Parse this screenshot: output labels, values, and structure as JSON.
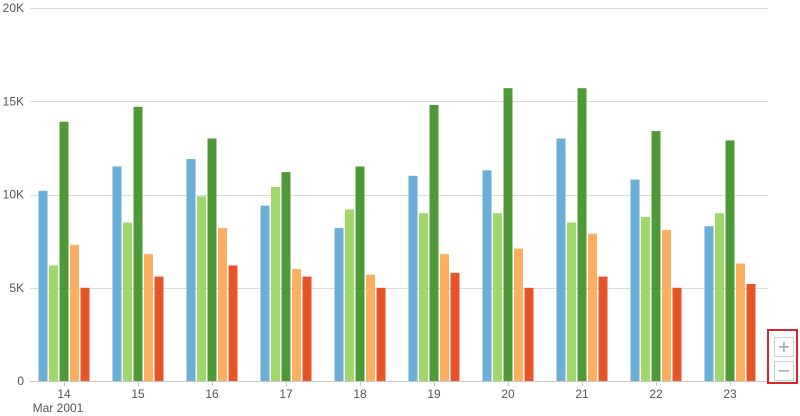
{
  "chart_data": {
    "type": "bar",
    "title": "",
    "xlabel": "",
    "ylabel": "",
    "categories": [
      "14",
      "15",
      "16",
      "17",
      "18",
      "19",
      "20",
      "21",
      "22",
      "23"
    ],
    "x_sublabel": "Mar 2001",
    "ylim": [
      0,
      20000
    ],
    "y_ticks": [
      {
        "value": 0,
        "label": "0"
      },
      {
        "value": 5000,
        "label": "5K"
      },
      {
        "value": 10000,
        "label": "10K"
      },
      {
        "value": 15000,
        "label": "15K"
      },
      {
        "value": 20000,
        "label": "20K"
      }
    ],
    "grid": true,
    "legend": "none",
    "series": [
      {
        "color": "#6baed6",
        "values": [
          10200,
          11500,
          11900,
          9400,
          8200,
          11000,
          11300,
          13000,
          10800,
          8300
        ]
      },
      {
        "color": "#a1d76a",
        "values": [
          6200,
          8500,
          9900,
          10400,
          9200,
          9000,
          9000,
          8500,
          8800,
          9000
        ]
      },
      {
        "color": "#4d9a36",
        "values": [
          13900,
          14700,
          13000,
          11200,
          11500,
          14800,
          15700,
          15700,
          13400,
          12900
        ]
      },
      {
        "color": "#fdae61",
        "values": [
          7300,
          6800,
          8200,
          6000,
          5700,
          6800,
          7100,
          7900,
          8100,
          6300
        ]
      },
      {
        "color": "#e6552a",
        "values": [
          5000,
          5600,
          6200,
          5600,
          5000,
          5800,
          5000,
          5600,
          5000,
          5200
        ]
      }
    ]
  },
  "zoom": {
    "in_label": "+",
    "out_label": "−"
  }
}
